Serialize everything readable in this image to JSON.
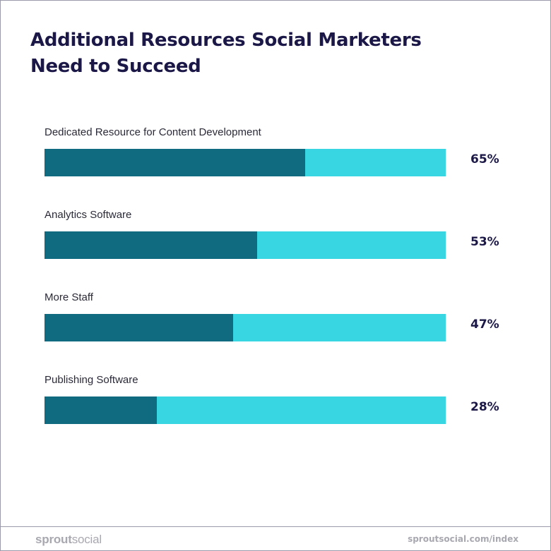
{
  "chart_data": {
    "type": "bar",
    "orientation": "horizontal",
    "title": "Additional Resources Social Marketers Need to Succeed",
    "title_lines": [
      "Additional Resources Social Marketers",
      "Need to Succeed"
    ],
    "categories": [
      "Dedicated Resource for Content Development",
      "Analytics Software",
      "More Staff",
      "Publishing Software"
    ],
    "values": [
      65,
      53,
      47,
      28
    ],
    "value_labels": [
      "65%",
      "53%",
      "47%",
      "28%"
    ],
    "unit": "%",
    "xlim": [
      0,
      100
    ],
    "grid": false,
    "legend": false,
    "colors": {
      "fill": "#106b80",
      "track": "#37d6e2",
      "text": "#1b1847"
    }
  },
  "footer": {
    "brand_part1": "sprout",
    "brand_part2": "social",
    "url": "sproutsocial.com/index"
  }
}
